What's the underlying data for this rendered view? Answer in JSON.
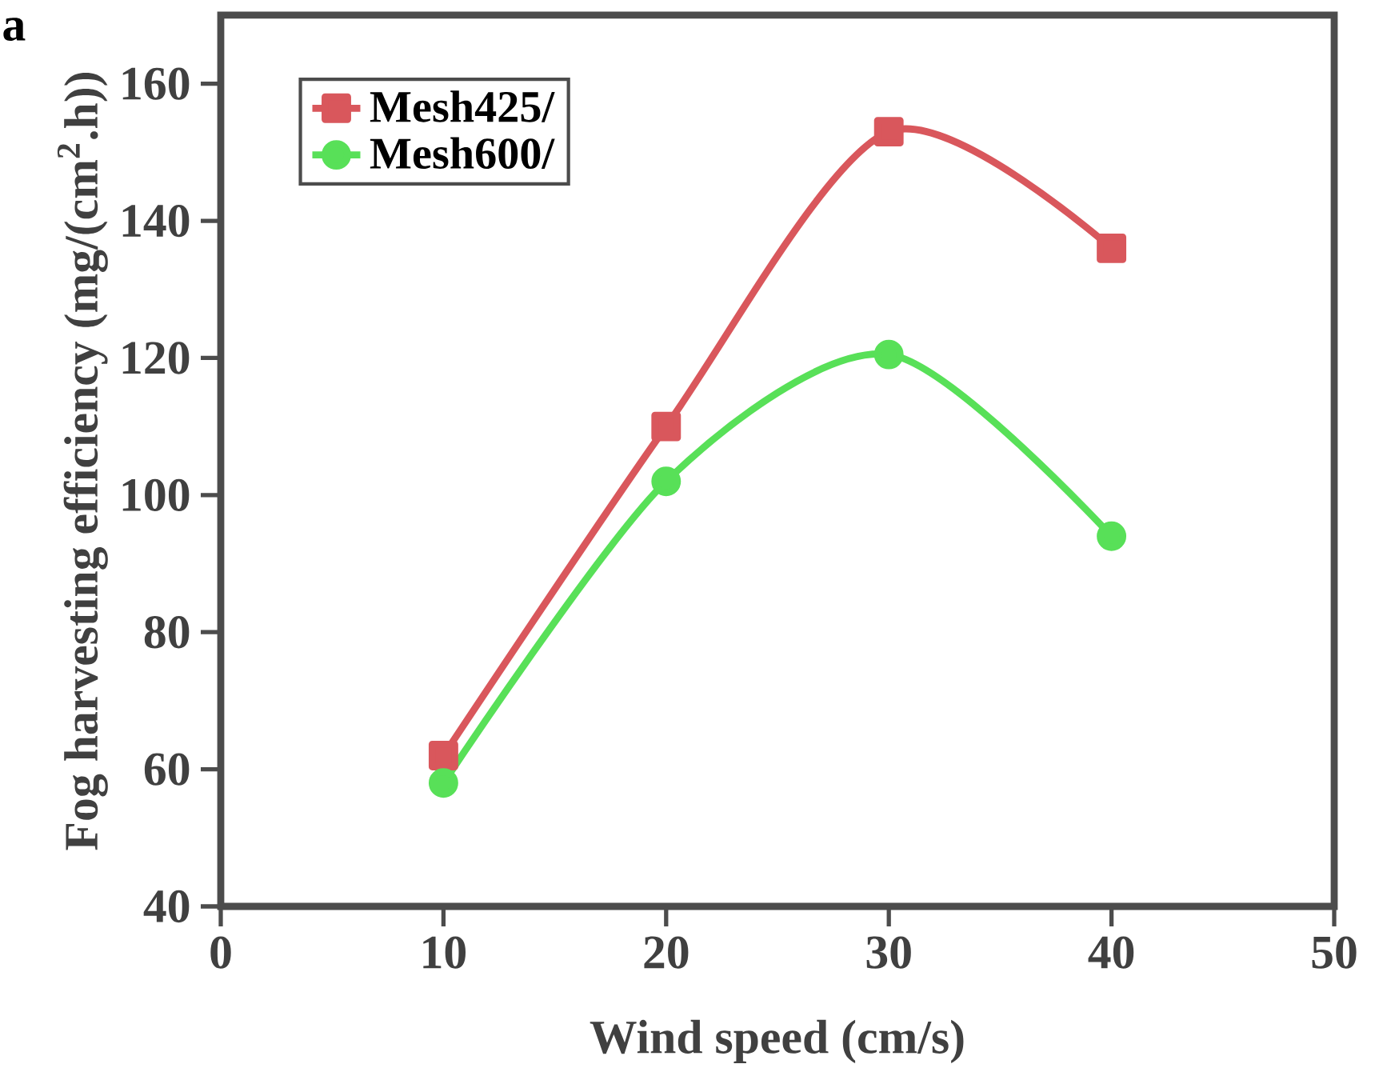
{
  "chart_data": {
    "type": "line",
    "xlabel": "Wind speed (cm/s)",
    "ylabel": "Fog harvesting efficiency (mg/(cm$^{2}$.h))",
    "x": [
      10,
      20,
      30,
      40
    ],
    "series": [
      {
        "name": "Mesh425/",
        "color": "#d9575c",
        "marker": "square",
        "values": [
          62,
          110,
          153,
          136
        ]
      },
      {
        "name": "Mesh600/",
        "color": "#58e058",
        "marker": "circle",
        "values": [
          58,
          102,
          120.5,
          94
        ]
      }
    ],
    "xlim": [
      0,
      50
    ],
    "xticks": [
      0,
      10,
      20,
      30,
      40,
      50
    ],
    "ylim": [
      40,
      170
    ],
    "yticks": [
      40,
      60,
      80,
      100,
      120,
      140,
      160
    ],
    "legend": "top left",
    "line_style": "solid",
    "annotations": [
      "a"
    ]
  }
}
